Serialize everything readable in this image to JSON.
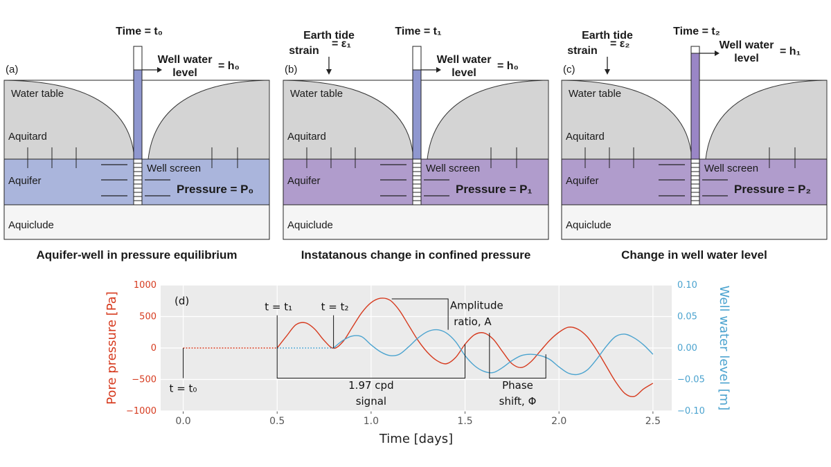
{
  "panels": [
    {
      "label": "(a)",
      "time_label": "Time = t₀",
      "earth_tide": null,
      "well_level_label": "Well water level",
      "well_level_value": "= h₀",
      "water_table": "Water table",
      "aquitard": "Aquitard",
      "aquifer": "Aquifer",
      "well_screen": "Well screen",
      "aquiclude": "Aquiclude",
      "pressure": "Pressure = P₀",
      "caption": "Aquifer-well  in pressure equilibrium",
      "aquifer_color": "#aab5dc",
      "well_fill_color": "#8f97cf",
      "well_fill_level": 0.7
    },
    {
      "label": "(b)",
      "time_label": "Time = t₁",
      "earth_tide": {
        "line1": "Earth tide",
        "line2": "strain",
        "value": "= ε₁"
      },
      "well_level_label": "Well water level",
      "well_level_value": "= h₀",
      "water_table": "Water table",
      "aquitard": "Aquitard",
      "aquifer": "Aquifer",
      "well_screen": "Well screen",
      "aquiclude": "Aquiclude",
      "pressure": "Pressure = P₁",
      "caption": "Instatanous change in confined pressure",
      "aquifer_color": "#b09ccc",
      "well_fill_color": "#8f97cf",
      "well_fill_level": 0.7
    },
    {
      "label": "(c)",
      "time_label": "Time = t₂",
      "earth_tide": {
        "line1": "Earth tide",
        "line2": "strain",
        "value": "= ε₂"
      },
      "well_level_label": "Well water level",
      "well_level_value": "= h₁",
      "water_table": "Water table",
      "aquitard": "Aquitard",
      "aquifer": "Aquifer",
      "well_screen": "Well screen",
      "aquiclude": "Aquiclude",
      "pressure": "Pressure = P₂",
      "caption": "Change in well water level",
      "aquifer_color": "#b09ccc",
      "well_fill_color": "#9a86c6",
      "well_fill_level": 0.93
    }
  ],
  "chart_data": {
    "type": "line",
    "panel_label": "(d)",
    "xlabel": "Time [days]",
    "ylabel_left": "Pore pressure [Pa]",
    "ylabel_right": "Well water level [m]",
    "xlim": [
      -0.12,
      2.6
    ],
    "ylim_left": [
      -1000,
      1000
    ],
    "ylim_right": [
      -0.1,
      0.1
    ],
    "x_ticks": [
      "0.0",
      "0.5",
      "1.0",
      "1.5",
      "2.0",
      "2.5"
    ],
    "y_ticks_left": [
      "1000",
      "500",
      "0",
      "−500",
      "−1000"
    ],
    "y_ticks_right": [
      "0.10",
      "0.05",
      "0.00",
      "−0.05",
      "−0.10"
    ],
    "grid": true,
    "colors": {
      "pressure": "#d63a1e",
      "well": "#4ba3cf",
      "background": "#ebebeb"
    },
    "series": [
      {
        "name": "Pore pressure [Pa]",
        "axis": "left",
        "x": [
          0.5,
          0.55,
          0.6,
          0.65,
          0.7,
          0.75,
          0.8,
          0.85,
          0.9,
          0.95,
          1.0,
          1.05,
          1.1,
          1.15,
          1.2,
          1.25,
          1.3,
          1.35,
          1.4,
          1.45,
          1.5,
          1.55,
          1.6,
          1.65,
          1.7,
          1.75,
          1.8,
          1.85,
          1.9,
          1.95,
          2.0,
          2.05,
          2.1,
          2.15,
          2.2,
          2.25,
          2.3,
          2.35,
          2.4,
          2.45,
          2.5
        ],
        "values": [
          0,
          190,
          370,
          400,
          300,
          120,
          -5,
          100,
          330,
          560,
          720,
          790,
          760,
          600,
          360,
          120,
          -70,
          -200,
          -250,
          -150,
          60,
          210,
          240,
          140,
          -60,
          -250,
          -310,
          -220,
          -50,
          120,
          250,
          330,
          300,
          180,
          -30,
          -280,
          -530,
          -720,
          -770,
          -650,
          -560
        ]
      },
      {
        "name": "Well water level [m]",
        "axis": "right",
        "x": [
          0.8,
          0.85,
          0.9,
          0.95,
          1.0,
          1.05,
          1.1,
          1.15,
          1.2,
          1.25,
          1.3,
          1.35,
          1.4,
          1.45,
          1.5,
          1.55,
          1.6,
          1.65,
          1.7,
          1.75,
          1.8,
          1.85,
          1.9,
          1.95,
          2.0,
          2.05,
          2.1,
          2.15,
          2.2,
          2.25,
          2.3,
          2.35,
          2.4,
          2.45,
          2.5
        ],
        "values": [
          0,
          0.012,
          0.019,
          0.018,
          0.005,
          -0.006,
          -0.012,
          -0.01,
          0.002,
          0.016,
          0.026,
          0.029,
          0.024,
          0.01,
          -0.012,
          -0.028,
          -0.037,
          -0.039,
          -0.031,
          -0.02,
          -0.012,
          -0.01,
          -0.012,
          -0.018,
          -0.03,
          -0.04,
          -0.042,
          -0.035,
          -0.018,
          0.002,
          0.018,
          0.022,
          0.016,
          0.005,
          -0.01
        ]
      },
      {
        "name": "pre-signal pressure",
        "axis": "left",
        "style": "dotted",
        "x": [
          0.0,
          0.5
        ],
        "values": [
          0,
          0
        ]
      },
      {
        "name": "pre-signal well level",
        "axis": "right",
        "style": "dotted",
        "x": [
          0.5,
          0.8
        ],
        "values": [
          0,
          0
        ]
      }
    ],
    "annotations": {
      "t0": "t = t₀",
      "t1": "t = t₁",
      "t2": "t = t₂",
      "amplitude_1": "Amplitude",
      "amplitude_2": "ratio, A",
      "signal_1": "1.97 cpd",
      "signal_2": "signal",
      "phase_1": "Phase",
      "phase_2": "shift, Φ"
    }
  }
}
